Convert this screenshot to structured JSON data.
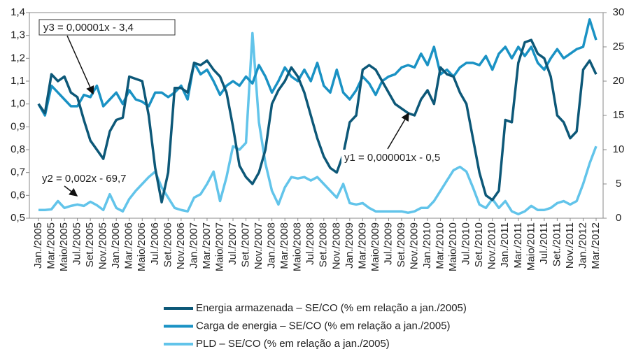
{
  "chart_data": {
    "type": "line",
    "categories": [
      "Jan./2005",
      null,
      "Mar./2005",
      null,
      "Maio/2005",
      null,
      "Jul./2005",
      null,
      "Set./2005",
      null,
      "Nov./2005",
      null,
      "Jan./2006",
      null,
      "Mar./2006",
      null,
      "Maio/2006",
      null,
      "Jul./2006",
      null,
      "Set./2006",
      null,
      "Nov./2006",
      null,
      "Jan./2007",
      null,
      "Mar./2007",
      null,
      "Maio/2007",
      null,
      "Jul./2007",
      null,
      "Set./2007",
      null,
      "Nov./2007",
      null,
      "Jan./2008",
      null,
      "Mar./2008",
      null,
      "Maio/2008",
      null,
      "Jul./2008",
      null,
      "Set./2008",
      null,
      "Nov./2008",
      null,
      "Jan./2009",
      null,
      "Mar./2009",
      null,
      "Maio/2009",
      null,
      "Jul./2009",
      null,
      "Set./2009",
      null,
      "Nov./2009",
      null,
      "Jan./2010",
      null,
      "Mar./2010",
      null,
      "Maio/2010",
      null,
      "Jul./2010",
      null,
      "Set./2010",
      null,
      "Nov./2010",
      null,
      "Jan./2011",
      null,
      "Mar./2011",
      null,
      "Maio/2011",
      null,
      "Jul./2011",
      null,
      "Set./2011",
      null,
      "Nov./2011",
      null,
      "Jan./2012",
      null,
      "Mar./2012"
    ],
    "series": [
      {
        "name": "Energia armazenada – SE/CO (% em relação a jan./2005)",
        "color": "#0d5878",
        "values": [
          1.0,
          0.96,
          1.13,
          1.1,
          1.12,
          1.05,
          1.03,
          0.93,
          0.84,
          0.8,
          0.76,
          0.88,
          0.93,
          0.94,
          1.12,
          1.11,
          1.1,
          0.95,
          0.72,
          0.57,
          0.7,
          1.07,
          1.07,
          1.05,
          1.18,
          1.17,
          1.19,
          1.15,
          1.12,
          1.05,
          0.9,
          0.73,
          0.68,
          0.65,
          0.7,
          0.8,
          1.0,
          1.06,
          1.1,
          1.16,
          1.12,
          1.05,
          0.95,
          0.85,
          0.77,
          0.72,
          0.7,
          0.78,
          0.92,
          0.95,
          1.15,
          1.17,
          1.15,
          1.1,
          1.05,
          1.0,
          0.98,
          0.96,
          0.95,
          1.02,
          1.06,
          1.0,
          1.16,
          1.13,
          1.12,
          1.05,
          1.0,
          0.85,
          0.7,
          0.6,
          0.58,
          0.62,
          0.93,
          0.92,
          1.18,
          1.27,
          1.28,
          1.22,
          1.2,
          1.12,
          0.95,
          0.92,
          0.85,
          0.88,
          1.15,
          1.19,
          1.13
        ]
      },
      {
        "name": "Carga de energia – SE/CO (% em relação a jan./2005)",
        "color": "#1a92c4",
        "values": [
          1.0,
          0.95,
          1.08,
          1.05,
          1.02,
          0.99,
          0.99,
          1.04,
          1.03,
          1.08,
          0.99,
          1.02,
          1.05,
          1.0,
          1.06,
          1.02,
          1.01,
          0.99,
          1.05,
          1.05,
          1.03,
          1.05,
          1.08,
          1.02,
          1.18,
          1.13,
          1.15,
          1.1,
          1.04,
          1.08,
          1.1,
          1.08,
          1.12,
          1.09,
          1.17,
          1.12,
          1.05,
          1.1,
          1.16,
          1.12,
          1.1,
          1.15,
          1.1,
          1.18,
          1.08,
          1.05,
          1.15,
          1.05,
          1.02,
          1.06,
          1.12,
          1.09,
          1.04,
          1.1,
          1.12,
          1.13,
          1.16,
          1.17,
          1.16,
          1.22,
          1.17,
          1.25,
          1.13,
          1.15,
          1.12,
          1.16,
          1.18,
          1.18,
          1.17,
          1.21,
          1.15,
          1.22,
          1.25,
          1.2,
          1.25,
          1.21,
          1.25,
          1.18,
          1.15,
          1.2,
          1.24,
          1.2,
          1.22,
          1.24,
          1.25,
          1.37,
          1.28
        ]
      },
      {
        "name": "PLD – SE/CO (% em relação a jan./2005)",
        "color": "#62c4ea",
        "axis": "y2",
        "values": [
          1.2,
          1.2,
          1.3,
          2.5,
          1.5,
          1.8,
          2.0,
          1.8,
          2.4,
          1.9,
          1.2,
          3.5,
          1.5,
          1.0,
          2.8,
          4.0,
          5.0,
          6.0,
          6.8,
          4.5,
          3.0,
          1.5,
          1.2,
          1.0,
          3.0,
          3.5,
          5.0,
          6.8,
          2.5,
          6.0,
          10.5,
          10.0,
          11.0,
          27.0,
          14.0,
          8.0,
          4.0,
          2.0,
          4.5,
          6.0,
          5.8,
          6.0,
          5.5,
          6.0,
          5.0,
          4.0,
          3.0,
          5.0,
          2.2,
          2.0,
          2.2,
          1.5,
          1.0,
          1.0,
          1.0,
          1.0,
          1.0,
          0.8,
          1.0,
          1.5,
          1.5,
          2.5,
          4.0,
          5.5,
          7.0,
          7.5,
          6.8,
          4.5,
          2.0,
          1.5,
          2.8,
          1.5,
          2.5,
          1.0,
          0.6,
          1.0,
          1.8,
          1.2,
          1.2,
          1.5,
          2.2,
          2.5,
          2.0,
          2.5,
          5.0,
          8.0,
          10.5
        ]
      }
    ],
    "ylim": [
      0.5,
      1.4
    ],
    "yticks": [
      {
        "value": 0.5,
        "label": "0,5"
      },
      {
        "value": 0.6,
        "label": "0,6"
      },
      {
        "value": 0.7,
        "label": "0,7"
      },
      {
        "value": 0.8,
        "label": "0,8"
      },
      {
        "value": 0.9,
        "label": "0,9"
      },
      {
        "value": 1.0,
        "label": "1,0"
      },
      {
        "value": 1.1,
        "label": "1,1"
      },
      {
        "value": 1.2,
        "label": "1,2"
      },
      {
        "value": 1.3,
        "label": "1,3"
      },
      {
        "value": 1.4,
        "label": "1,4"
      }
    ],
    "y2lim": [
      0,
      30
    ],
    "y2ticks": [
      0,
      5,
      10,
      15,
      20,
      25,
      30
    ],
    "annotations": [
      "y3 = 0,00001x - 3,4",
      "y2 = 0,002x - 69,7",
      "y1 = 0,000001x - 0,5"
    ]
  }
}
